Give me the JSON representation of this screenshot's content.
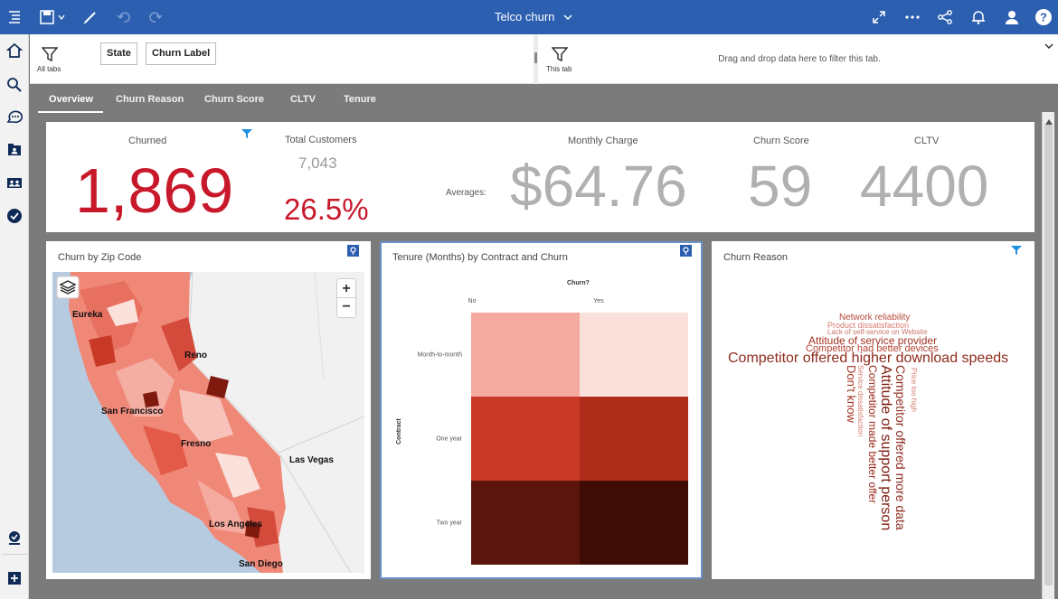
{
  "header": {
    "title": "Telco churn"
  },
  "filters": {
    "all_tabs_label": "All tabs",
    "this_tab_label": "This tab",
    "chips": [
      "State",
      "Churn Label"
    ],
    "drop_hint": "Drag and drop data here to filter this tab."
  },
  "tabs": [
    "Overview",
    "Churn Reason",
    "Churn Score",
    "CLTV",
    "Tenure"
  ],
  "kpis": {
    "churned_label": "Churned",
    "churned_value": "1,869",
    "total_label": "Total Customers",
    "total_value": "7,043",
    "rate_value": "26.5%",
    "averages_label": "Averages:",
    "monthly_label": "Monthly Charge",
    "monthly_value": "$64.76",
    "score_label": "Churn Score",
    "score_value": "59",
    "cltv_label": "CLTV",
    "cltv_value": "4400"
  },
  "map": {
    "title": "Churn by Zip Code",
    "zoom_in": "+",
    "zoom_out": "−",
    "cities": [
      "Eureka",
      "Reno",
      "San Francisco",
      "Fresno",
      "Las Vegas",
      "Los Angeles",
      "San Diego"
    ]
  },
  "heatmap": {
    "title": "Tenure (Months) by Contract and Churn"
  },
  "chart_data": {
    "type": "heatmap",
    "title": "Tenure (Months) by Contract and Churn",
    "xlabel": "Churn?",
    "ylabel": "Contract",
    "x_categories": [
      "No",
      "Yes"
    ],
    "y_categories": [
      "Month-to-month",
      "One year",
      "Two year"
    ],
    "cell_colors": [
      [
        "#f4aa9f",
        "#fbe1dc"
      ],
      [
        "#c83a26",
        "#ae2d1b"
      ],
      [
        "#5b150c",
        "#3f0b05"
      ]
    ]
  },
  "wordcloud": {
    "title": "Churn Reason",
    "words": {
      "w_a": "Network reliability",
      "w_b": "Product dissatisfaction",
      "w_c": "Lack of self-service on Website",
      "w_d": "Attitude of service provider",
      "w_e": "Competitor had better devices",
      "w_f": "Competitor offered higher download speeds",
      "w_g": "Don't know",
      "w_h": "Competitor made better offer",
      "w_i": "Attitude of support person",
      "w_j": "Competitor offered more data",
      "w_k": "Service dissatisfaction",
      "w_l": "Price too high"
    }
  },
  "colors": {
    "brand": "#2c5fb0",
    "kpi_red": "#c8192b",
    "filter_blue": "#1f8fe0"
  }
}
